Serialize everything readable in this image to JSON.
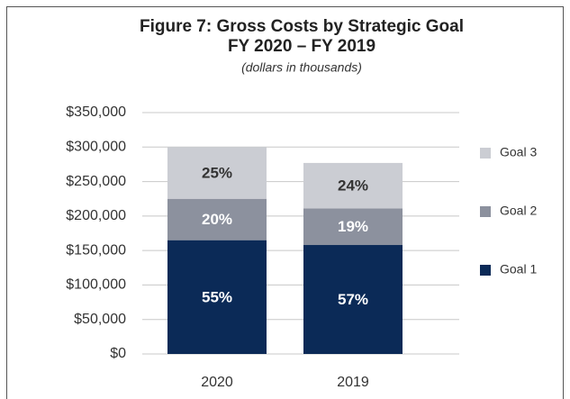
{
  "chart_data": {
    "type": "stacked_bar",
    "title": "Figure 7:  Gross Costs by Strategic Goal",
    "subtitle": "FY 2020 – FY 2019",
    "note": "(dollars in thousands)",
    "categories": [
      "2020",
      "2019"
    ],
    "series": [
      {
        "name": "Goal 1",
        "color": "#0b2a57",
        "values": [
          165000,
          158000
        ],
        "value_labels": [
          "55%",
          "57%"
        ]
      },
      {
        "name": "Goal 2",
        "color": "#8c919e",
        "values": [
          60000,
          53000
        ],
        "value_labels": [
          "20%",
          "19%"
        ]
      },
      {
        "name": "Goal 3",
        "color": "#cbcdd3",
        "values": [
          75000,
          66000
        ],
        "value_labels": [
          "25%",
          "24%"
        ]
      }
    ],
    "ylim": [
      0,
      350000
    ],
    "yticks": [
      {
        "value": 0,
        "label": "$0"
      },
      {
        "value": 50000,
        "label": "$50,000"
      },
      {
        "value": 100000,
        "label": "$100,000"
      },
      {
        "value": 150000,
        "label": "$150,000"
      },
      {
        "value": 200000,
        "label": "$200,000"
      },
      {
        "value": 250000,
        "label": "$250,000"
      },
      {
        "value": 300000,
        "label": "$300,000"
      },
      {
        "value": 350000,
        "label": "$350,000"
      }
    ],
    "grid": true,
    "legend": "right"
  }
}
